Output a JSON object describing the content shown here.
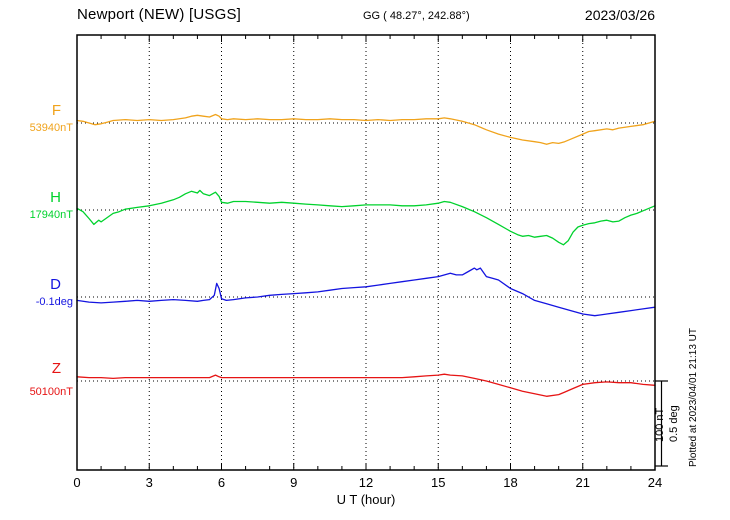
{
  "header": {
    "station_title": "Newport (NEW)  [USGS]",
    "coordinates": "GG ( 48.27°, 242.88°)",
    "date": "2023/03/26"
  },
  "chart_data": {
    "type": "line",
    "title": "Newport (NEW)  [USGS] magnetogram 2023/03/26",
    "xlabel": "U T (hour)",
    "xlim": [
      0,
      24
    ],
    "x_ticks": [
      0,
      3,
      6,
      9,
      12,
      15,
      18,
      21,
      24
    ],
    "grid": "dotted vertical lines every 3 hours; dotted horizontal baseline per trace",
    "legend_position": "left baseline labels",
    "scale_bar": {
      "nT_label": "100 nT",
      "deg_label": "0.5 deg",
      "nT": 100,
      "deg": 0.5
    },
    "plotted_note": "Plotted at 2023/04/01 21:13 UT",
    "series": [
      {
        "name": "F",
        "baseline_label": "53940nT",
        "baseline_value": 53940,
        "unit": "nT",
        "color": "#f0a31c",
        "offsets_are": "value minus baseline, in nT",
        "offsets": [
          [
            0,
            3
          ],
          [
            0.25,
            2
          ],
          [
            0.5,
            0
          ],
          [
            0.75,
            -2
          ],
          [
            1,
            -1
          ],
          [
            1.25,
            1
          ],
          [
            1.5,
            3
          ],
          [
            2,
            4
          ],
          [
            2.5,
            3
          ],
          [
            3,
            4
          ],
          [
            3.5,
            3
          ],
          [
            4,
            4
          ],
          [
            4.5,
            6
          ],
          [
            4.75,
            8
          ],
          [
            5,
            9
          ],
          [
            5.25,
            8
          ],
          [
            5.5,
            7
          ],
          [
            5.75,
            10
          ],
          [
            5.9,
            8
          ],
          [
            6,
            5
          ],
          [
            6.25,
            4
          ],
          [
            6.5,
            5
          ],
          [
            7,
            4
          ],
          [
            7.5,
            5
          ],
          [
            8,
            4
          ],
          [
            8.5,
            4
          ],
          [
            9,
            5
          ],
          [
            9.5,
            4
          ],
          [
            10,
            4
          ],
          [
            10.5,
            5
          ],
          [
            11,
            4
          ],
          [
            11.5,
            4
          ],
          [
            12,
            3
          ],
          [
            12.5,
            4
          ],
          [
            13,
            3
          ],
          [
            13.5,
            4
          ],
          [
            14,
            4
          ],
          [
            14.5,
            5
          ],
          [
            15,
            5
          ],
          [
            15.25,
            6
          ],
          [
            15.5,
            5
          ],
          [
            16,
            2
          ],
          [
            16.5,
            -2
          ],
          [
            17,
            -8
          ],
          [
            17.5,
            -13
          ],
          [
            18,
            -17
          ],
          [
            18.5,
            -20
          ],
          [
            19,
            -22
          ],
          [
            19.25,
            -23
          ],
          [
            19.5,
            -25
          ],
          [
            19.75,
            -23
          ],
          [
            20,
            -24
          ],
          [
            20.25,
            -22
          ],
          [
            20.5,
            -19
          ],
          [
            21,
            -13
          ],
          [
            21.25,
            -10
          ],
          [
            21.5,
            -9
          ],
          [
            22,
            -7
          ],
          [
            22.25,
            -8
          ],
          [
            22.5,
            -6
          ],
          [
            23,
            -4
          ],
          [
            23.5,
            -2
          ],
          [
            24,
            2
          ]
        ]
      },
      {
        "name": "H",
        "baseline_label": "17940nT",
        "baseline_value": 17940,
        "unit": "nT",
        "color": "#00d22d",
        "offsets_are": "value minus baseline, in nT",
        "offsets": [
          [
            0,
            2
          ],
          [
            0.25,
            -2
          ],
          [
            0.5,
            -10
          ],
          [
            0.7,
            -17
          ],
          [
            0.9,
            -12
          ],
          [
            1,
            -14
          ],
          [
            1.2,
            -10
          ],
          [
            1.5,
            -4
          ],
          [
            1.75,
            -2
          ],
          [
            2,
            1
          ],
          [
            2.5,
            3
          ],
          [
            3,
            5
          ],
          [
            3.5,
            8
          ],
          [
            4,
            12
          ],
          [
            4.25,
            15
          ],
          [
            4.5,
            19
          ],
          [
            4.75,
            22
          ],
          [
            5,
            20
          ],
          [
            5.1,
            23
          ],
          [
            5.25,
            19
          ],
          [
            5.5,
            17
          ],
          [
            5.75,
            21
          ],
          [
            5.9,
            16
          ],
          [
            6,
            9
          ],
          [
            6.25,
            8
          ],
          [
            6.5,
            10
          ],
          [
            7,
            10
          ],
          [
            7.5,
            9
          ],
          [
            8,
            8
          ],
          [
            8.5,
            9
          ],
          [
            9,
            8
          ],
          [
            9.5,
            7
          ],
          [
            10,
            6
          ],
          [
            10.5,
            5
          ],
          [
            11,
            4
          ],
          [
            11.5,
            5
          ],
          [
            12,
            6
          ],
          [
            12.5,
            6
          ],
          [
            13,
            6
          ],
          [
            13.5,
            5
          ],
          [
            14,
            5
          ],
          [
            14.5,
            6
          ],
          [
            15,
            8
          ],
          [
            15.25,
            10
          ],
          [
            15.5,
            9
          ],
          [
            16,
            4
          ],
          [
            16.5,
            -2
          ],
          [
            17,
            -9
          ],
          [
            17.5,
            -17
          ],
          [
            18,
            -25
          ],
          [
            18.3,
            -29
          ],
          [
            18.5,
            -31
          ],
          [
            18.75,
            -30
          ],
          [
            19,
            -32
          ],
          [
            19.25,
            -31
          ],
          [
            19.5,
            -30
          ],
          [
            19.75,
            -33
          ],
          [
            20,
            -38
          ],
          [
            20.2,
            -41
          ],
          [
            20.4,
            -36
          ],
          [
            20.6,
            -26
          ],
          [
            20.8,
            -20
          ],
          [
            21,
            -18
          ],
          [
            21.25,
            -16
          ],
          [
            21.5,
            -15
          ],
          [
            21.75,
            -13
          ],
          [
            22,
            -12
          ],
          [
            22.25,
            -14
          ],
          [
            22.5,
            -13
          ],
          [
            22.75,
            -9
          ],
          [
            23,
            -6
          ],
          [
            23.25,
            -4
          ],
          [
            23.5,
            -1
          ],
          [
            23.75,
            2
          ],
          [
            24,
            5
          ]
        ]
      },
      {
        "name": "D",
        "baseline_label": "-0.1deg",
        "baseline_value": -0.1,
        "unit": "deg",
        "color": "#1414e0",
        "offsets_are": "value minus baseline, in deg",
        "offsets": [
          [
            0,
            -0.02
          ],
          [
            0.5,
            -0.03
          ],
          [
            1,
            -0.035
          ],
          [
            1.5,
            -0.03
          ],
          [
            2,
            -0.025
          ],
          [
            2.5,
            -0.02
          ],
          [
            3,
            -0.025
          ],
          [
            3.5,
            -0.02
          ],
          [
            4,
            -0.015
          ],
          [
            4.5,
            -0.02
          ],
          [
            5,
            -0.025
          ],
          [
            5.25,
            -0.02
          ],
          [
            5.5,
            -0.015
          ],
          [
            5.7,
            0.01
          ],
          [
            5.8,
            0.08
          ],
          [
            5.9,
            0.05
          ],
          [
            6,
            -0.01
          ],
          [
            6.2,
            -0.02
          ],
          [
            6.5,
            -0.015
          ],
          [
            7,
            -0.005
          ],
          [
            7.5,
            0
          ],
          [
            8,
            0.01
          ],
          [
            8.5,
            0.015
          ],
          [
            9,
            0.02
          ],
          [
            9.5,
            0.025
          ],
          [
            10,
            0.03
          ],
          [
            10.5,
            0.04
          ],
          [
            11,
            0.05
          ],
          [
            11.5,
            0.055
          ],
          [
            12,
            0.06
          ],
          [
            12.5,
            0.07
          ],
          [
            13,
            0.08
          ],
          [
            13.5,
            0.09
          ],
          [
            14,
            0.1
          ],
          [
            14.5,
            0.11
          ],
          [
            15,
            0.12
          ],
          [
            15.5,
            0.14
          ],
          [
            15.75,
            0.13
          ],
          [
            16,
            0.13
          ],
          [
            16.25,
            0.15
          ],
          [
            16.5,
            0.17
          ],
          [
            16.6,
            0.16
          ],
          [
            16.75,
            0.17
          ],
          [
            17,
            0.12
          ],
          [
            17.25,
            0.11
          ],
          [
            17.5,
            0.1
          ],
          [
            18,
            0.05
          ],
          [
            18.5,
            0.02
          ],
          [
            19,
            -0.02
          ],
          [
            19.5,
            -0.04
          ],
          [
            20,
            -0.06
          ],
          [
            20.5,
            -0.08
          ],
          [
            21,
            -0.1
          ],
          [
            21.5,
            -0.11
          ],
          [
            21.75,
            -0.105
          ],
          [
            22,
            -0.1
          ],
          [
            22.5,
            -0.09
          ],
          [
            23,
            -0.08
          ],
          [
            23.5,
            -0.07
          ],
          [
            24,
            -0.06
          ]
        ]
      },
      {
        "name": "Z",
        "baseline_label": "50100nT",
        "baseline_value": 50100,
        "unit": "nT",
        "color": "#e61414",
        "offsets_are": "value minus baseline, in nT",
        "offsets": [
          [
            0,
            5
          ],
          [
            0.5,
            4
          ],
          [
            1,
            4
          ],
          [
            1.5,
            3
          ],
          [
            2,
            4
          ],
          [
            2.5,
            4
          ],
          [
            3,
            4
          ],
          [
            3.5,
            4
          ],
          [
            4,
            4
          ],
          [
            4.5,
            4
          ],
          [
            5,
            4
          ],
          [
            5.5,
            4
          ],
          [
            5.75,
            7
          ],
          [
            5.9,
            5
          ],
          [
            6,
            4
          ],
          [
            6.5,
            4
          ],
          [
            7,
            4
          ],
          [
            7.5,
            4
          ],
          [
            8,
            4
          ],
          [
            8.5,
            4
          ],
          [
            9,
            4
          ],
          [
            9.5,
            4
          ],
          [
            10,
            4
          ],
          [
            10.5,
            4
          ],
          [
            11,
            4
          ],
          [
            11.5,
            4
          ],
          [
            12,
            4
          ],
          [
            12.5,
            4
          ],
          [
            13,
            4
          ],
          [
            13.5,
            4
          ],
          [
            14,
            5
          ],
          [
            14.5,
            6
          ],
          [
            15,
            7
          ],
          [
            15.25,
            8
          ],
          [
            15.5,
            7
          ],
          [
            16,
            6
          ],
          [
            16.5,
            3
          ],
          [
            17,
            0
          ],
          [
            17.5,
            -4
          ],
          [
            18,
            -8
          ],
          [
            18.5,
            -12
          ],
          [
            19,
            -15
          ],
          [
            19.5,
            -18
          ],
          [
            20,
            -16
          ],
          [
            20.25,
            -13
          ],
          [
            20.5,
            -10
          ],
          [
            21,
            -4
          ],
          [
            21.5,
            -2
          ],
          [
            22,
            -1
          ],
          [
            22.5,
            -2
          ],
          [
            23,
            -2
          ],
          [
            23.5,
            -4
          ],
          [
            24,
            -5
          ]
        ]
      }
    ]
  }
}
